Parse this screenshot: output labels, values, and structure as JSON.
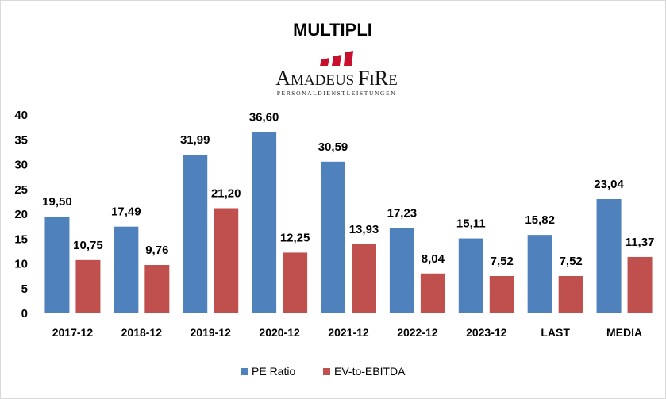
{
  "chart_data": {
    "type": "bar",
    "title": "MULTIPLI",
    "categories": [
      "2017-12",
      "2018-12",
      "2019-12",
      "2020-12",
      "2021-12",
      "2022-12",
      "2023-12",
      "LAST",
      "MEDIA"
    ],
    "series": [
      {
        "name": "PE Ratio",
        "color": "#4f81bd",
        "values": [
          19.5,
          17.49,
          31.99,
          36.6,
          30.59,
          17.23,
          15.11,
          15.82,
          23.04
        ],
        "labels": [
          "19,50",
          "17,49",
          "31,99",
          "36,60",
          "30,59",
          "17,23",
          "15,11",
          "15,82",
          "23,04"
        ]
      },
      {
        "name": "EV-to-EBITDA",
        "color": "#c0504d",
        "values": [
          10.75,
          9.76,
          21.2,
          12.25,
          13.93,
          8.04,
          7.52,
          7.52,
          11.37
        ],
        "labels": [
          "10,75",
          "9,76",
          "21,20",
          "12,25",
          "13,93",
          "8,04",
          "7,52",
          "7,52",
          "11,37"
        ]
      }
    ],
    "ylim": [
      0,
      40
    ],
    "yticks": [
      0,
      5,
      10,
      15,
      20,
      25,
      30,
      35,
      40
    ],
    "grid": false,
    "legend_position": "bottom"
  },
  "logo": {
    "name": "AMADEUS FIRE",
    "tagline": "PERSONALDIENSTLEISTUNGEN",
    "color": "#c8102e"
  }
}
